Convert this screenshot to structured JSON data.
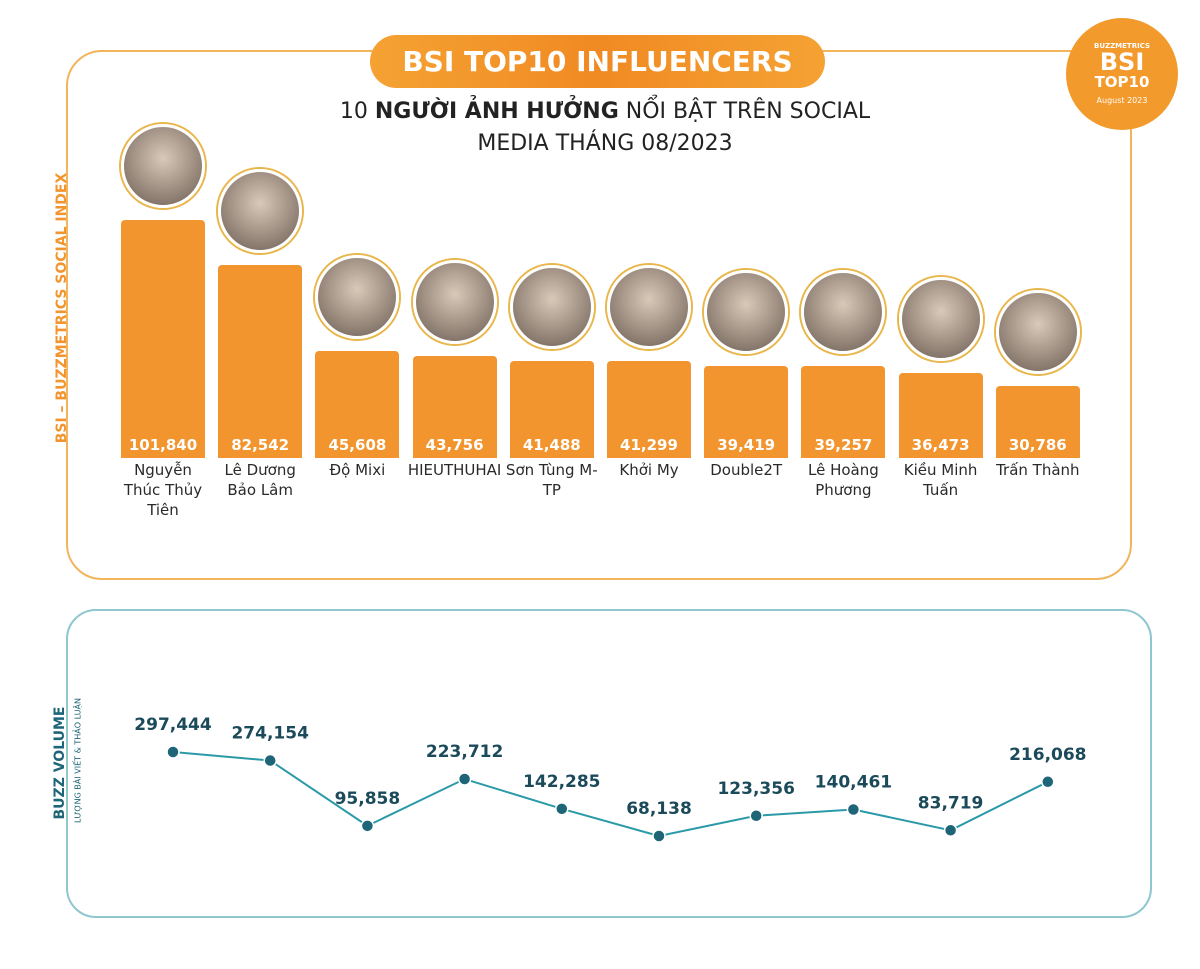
{
  "header": {
    "title": "BSI TOP10 INFLUENCERS",
    "subtitle_lead": "10",
    "subtitle_bold": "NGƯỜI ẢNH HƯỞNG",
    "subtitle_rest": "NỔI BẬT TRÊN SOCIAL MEDIA THÁNG 08/2023"
  },
  "badge": {
    "brand": "BUZZMETRICS",
    "title": "BSI",
    "subtitle": "TOP10",
    "period": "August 2023"
  },
  "chart_data": [
    {
      "type": "bar",
      "y_label": "BSI – BUZZMETRICS SOCIAL INDEX",
      "categories": [
        "Nguyễn Thúc Thủy Tiên",
        "Lê Dương Bảo Lâm",
        "Độ Mixi",
        "HIEUTHUHAI",
        "Sơn Tùng M-TP",
        "Khởi My",
        "Double2T",
        "Lê Hoàng Phương",
        "Kiều Minh Tuấn",
        "Trấn Thành"
      ],
      "values": [
        101840,
        82542,
        45608,
        43756,
        41488,
        41299,
        39419,
        39257,
        36473,
        30786
      ],
      "value_labels": [
        "101,840",
        "82,542",
        "45,608",
        "43,756",
        "41,488",
        "41,299",
        "39,419",
        "39,257",
        "36,473",
        "30,786"
      ],
      "color": "#f2952f"
    },
    {
      "type": "line",
      "y_label": "BUZZ VOLUME",
      "y_sublabel": "LƯỢNG BÀI VIẾT & THẢO LUẬN",
      "values": [
        297444,
        274154,
        95858,
        223712,
        142285,
        68138,
        123356,
        140461,
        83719,
        216068
      ],
      "value_labels": [
        "297,444",
        "274,154",
        "95,858",
        "223,712",
        "142,285",
        "68,138",
        "123,356",
        "140,461",
        "83,719",
        "216,068"
      ],
      "color": "#2b9aa8",
      "marker_color": "#1d6577"
    }
  ]
}
